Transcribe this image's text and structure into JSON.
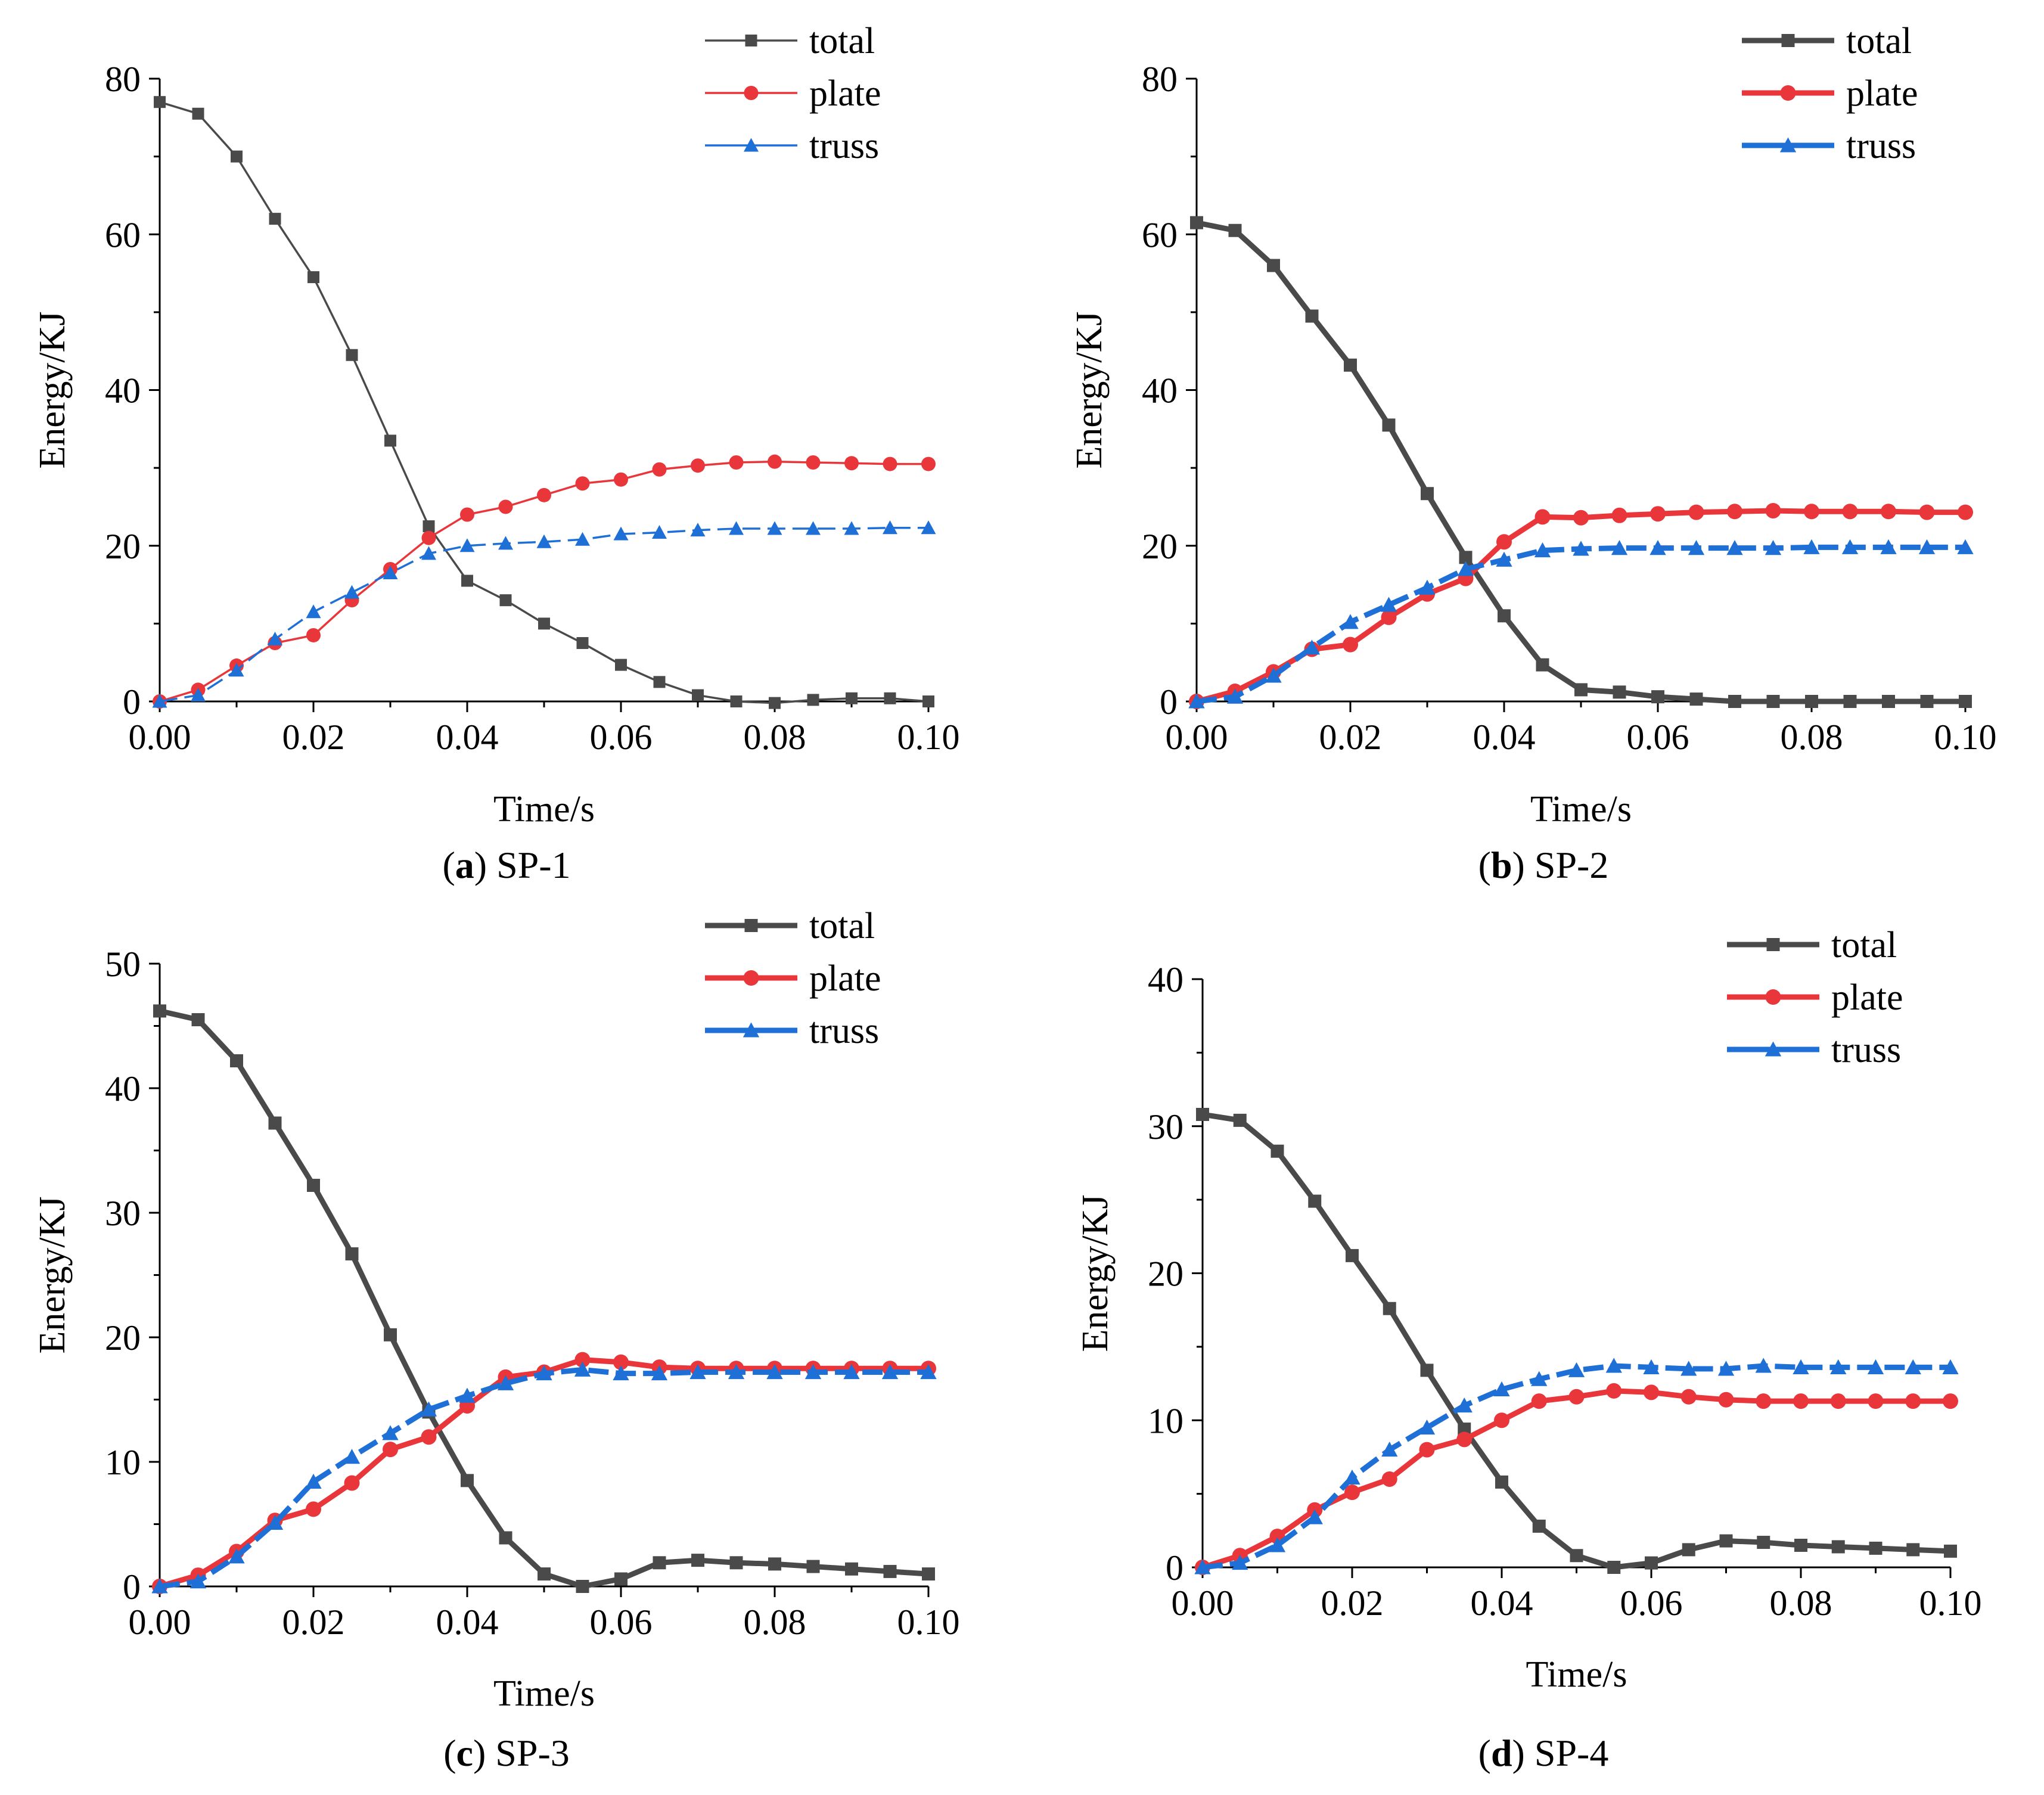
{
  "chart_data": [
    {
      "type": "line",
      "panel_label": "a",
      "caption": "SP-1",
      "xlabel": "Time/s",
      "ylabel": "Energy/KJ",
      "xlim": [
        0,
        0.1
      ],
      "ylim": [
        0,
        80
      ],
      "xticks": [
        "0.00",
        "0.02",
        "0.04",
        "0.06",
        "0.08",
        "0.10"
      ],
      "yticks": [
        "0",
        "20",
        "40",
        "60",
        "80"
      ],
      "x": [
        0,
        0.005,
        0.01,
        0.015,
        0.02,
        0.025,
        0.03,
        0.035,
        0.04,
        0.045,
        0.05,
        0.055,
        0.06,
        0.065,
        0.07,
        0.075,
        0.08,
        0.085,
        0.09,
        0.095,
        0.1
      ],
      "style": "thin",
      "legend": "top-right",
      "series": [
        {
          "name": "total",
          "marker": "square",
          "color": "#4a4a4a",
          "dashed": false,
          "values": [
            77,
            75.5,
            70,
            62,
            54.5,
            44.5,
            33.5,
            22.5,
            15.5,
            13,
            10,
            7.5,
            4.7,
            2.5,
            0.8,
            0,
            -0.2,
            0.2,
            0.4,
            0.4,
            0
          ]
        },
        {
          "name": "plate",
          "marker": "circle",
          "color": "#e8363a",
          "dashed": false,
          "values": [
            0,
            1.5,
            4.6,
            7.5,
            8.5,
            13,
            17,
            21,
            24,
            25,
            26.5,
            28,
            28.5,
            29.8,
            30.3,
            30.7,
            30.8,
            30.7,
            30.6,
            30.5,
            30.5
          ]
        },
        {
          "name": "truss",
          "marker": "triangle",
          "color": "#1e6fd6",
          "dashed": true,
          "values": [
            0,
            0.8,
            4,
            8,
            11.5,
            14,
            16.5,
            19,
            20,
            20.3,
            20.5,
            20.8,
            21.5,
            21.7,
            22,
            22.2,
            22.2,
            22.2,
            22.2,
            22.3,
            22.3
          ]
        }
      ]
    },
    {
      "type": "line",
      "panel_label": "b",
      "caption": "SP-2",
      "xlabel": "Time/s",
      "ylabel": "Energy/KJ",
      "xlim": [
        0,
        0.1
      ],
      "ylim": [
        0,
        80
      ],
      "xticks": [
        "0.00",
        "0.02",
        "0.04",
        "0.06",
        "0.08",
        "0.10"
      ],
      "yticks": [
        "0",
        "20",
        "40",
        "60",
        "80"
      ],
      "x": [
        0,
        0.005,
        0.01,
        0.015,
        0.02,
        0.025,
        0.03,
        0.035,
        0.04,
        0.045,
        0.05,
        0.055,
        0.06,
        0.065,
        0.07,
        0.075,
        0.08,
        0.085,
        0.09,
        0.095,
        0.1
      ],
      "style": "thick",
      "legend": "top-right",
      "series": [
        {
          "name": "total",
          "marker": "square",
          "color": "#4a4a4a",
          "dashed": false,
          "values": [
            61.5,
            60.5,
            56,
            49.5,
            43.2,
            35.5,
            26.7,
            18.5,
            11,
            4.7,
            1.5,
            1.2,
            0.6,
            0.3,
            0,
            0,
            0,
            0,
            0,
            0,
            0
          ]
        },
        {
          "name": "plate",
          "marker": "circle",
          "color": "#e8363a",
          "dashed": false,
          "values": [
            0,
            1.3,
            3.8,
            6.7,
            7.3,
            10.8,
            13.8,
            15.8,
            20.5,
            23.7,
            23.6,
            23.9,
            24.1,
            24.3,
            24.4,
            24.5,
            24.4,
            24.4,
            24.4,
            24.3,
            24.3
          ]
        },
        {
          "name": "truss",
          "marker": "triangle",
          "color": "#1e6fd6",
          "dashed": true,
          "values": [
            0,
            0.6,
            3.3,
            6.9,
            10.2,
            12.4,
            14.6,
            17,
            18.2,
            19.4,
            19.6,
            19.7,
            19.7,
            19.7,
            19.7,
            19.7,
            19.8,
            19.8,
            19.8,
            19.8,
            19.8
          ]
        }
      ]
    },
    {
      "type": "line",
      "panel_label": "c",
      "caption": "SP-3",
      "xlabel": "Time/s",
      "ylabel": "Energy/KJ",
      "xlim": [
        0,
        0.1
      ],
      "ylim": [
        0,
        50
      ],
      "xticks": [
        "0.00",
        "0.02",
        "0.04",
        "0.06",
        "0.08",
        "0.10"
      ],
      "yticks": [
        "0",
        "10",
        "20",
        "30",
        "40",
        "50"
      ],
      "x": [
        0,
        0.005,
        0.01,
        0.015,
        0.02,
        0.025,
        0.03,
        0.035,
        0.04,
        0.045,
        0.05,
        0.055,
        0.06,
        0.065,
        0.07,
        0.075,
        0.08,
        0.085,
        0.09,
        0.095,
        0.1
      ],
      "style": "thick",
      "legend": "top-right",
      "series": [
        {
          "name": "total",
          "marker": "square",
          "color": "#4a4a4a",
          "dashed": false,
          "values": [
            46.2,
            45.5,
            42.2,
            37.2,
            32.2,
            26.7,
            20.2,
            14,
            8.5,
            3.9,
            1,
            0,
            0.6,
            1.9,
            2.1,
            1.9,
            1.8,
            1.6,
            1.4,
            1.2,
            1
          ]
        },
        {
          "name": "plate",
          "marker": "circle",
          "color": "#e8363a",
          "dashed": false,
          "values": [
            0,
            0.9,
            2.8,
            5.3,
            6.2,
            8.3,
            11,
            12,
            14.5,
            16.8,
            17.2,
            18.2,
            18,
            17.6,
            17.5,
            17.5,
            17.5,
            17.5,
            17.5,
            17.5,
            17.5
          ]
        },
        {
          "name": "truss",
          "marker": "triangle",
          "color": "#1e6fd6",
          "dashed": true,
          "values": [
            0,
            0.4,
            2.4,
            5.1,
            8.4,
            10.4,
            12.3,
            14.2,
            15.3,
            16.3,
            17.1,
            17.4,
            17.1,
            17.1,
            17.2,
            17.2,
            17.2,
            17.2,
            17.2,
            17.2,
            17.2
          ]
        }
      ]
    },
    {
      "type": "line",
      "panel_label": "d",
      "caption": "SP-4",
      "xlabel": "Time/s",
      "ylabel": "Energy/KJ",
      "xlim": [
        0,
        0.1
      ],
      "ylim": [
        0,
        40
      ],
      "xticks": [
        "0.00",
        "0.02",
        "0.04",
        "0.06",
        "0.08",
        "0.10"
      ],
      "yticks": [
        "0",
        "10",
        "20",
        "30",
        "40"
      ],
      "x": [
        0,
        0.005,
        0.01,
        0.015,
        0.02,
        0.025,
        0.03,
        0.035,
        0.04,
        0.045,
        0.05,
        0.055,
        0.06,
        0.065,
        0.07,
        0.075,
        0.08,
        0.085,
        0.09,
        0.095,
        0.1
      ],
      "style": "thick",
      "legend": "top-right",
      "series": [
        {
          "name": "total",
          "marker": "square",
          "color": "#4a4a4a",
          "dashed": false,
          "values": [
            30.8,
            30.4,
            28.3,
            24.9,
            21.2,
            17.6,
            13.4,
            9.4,
            5.8,
            2.8,
            0.8,
            0,
            0.3,
            1.2,
            1.8,
            1.7,
            1.5,
            1.4,
            1.3,
            1.2,
            1.1
          ]
        },
        {
          "name": "plate",
          "marker": "circle",
          "color": "#e8363a",
          "dashed": false,
          "values": [
            0,
            0.8,
            2.1,
            3.9,
            5.1,
            6,
            8,
            8.7,
            10,
            11.3,
            11.6,
            12,
            11.9,
            11.6,
            11.4,
            11.3,
            11.3,
            11.3,
            11.3,
            11.3,
            11.3
          ]
        },
        {
          "name": "truss",
          "marker": "triangle",
          "color": "#1e6fd6",
          "dashed": true,
          "values": [
            0,
            0.3,
            1.5,
            3.4,
            6.1,
            8,
            9.5,
            11,
            12.1,
            12.8,
            13.4,
            13.7,
            13.6,
            13.5,
            13.5,
            13.7,
            13.6,
            13.6,
            13.6,
            13.6,
            13.6
          ]
        }
      ]
    }
  ]
}
